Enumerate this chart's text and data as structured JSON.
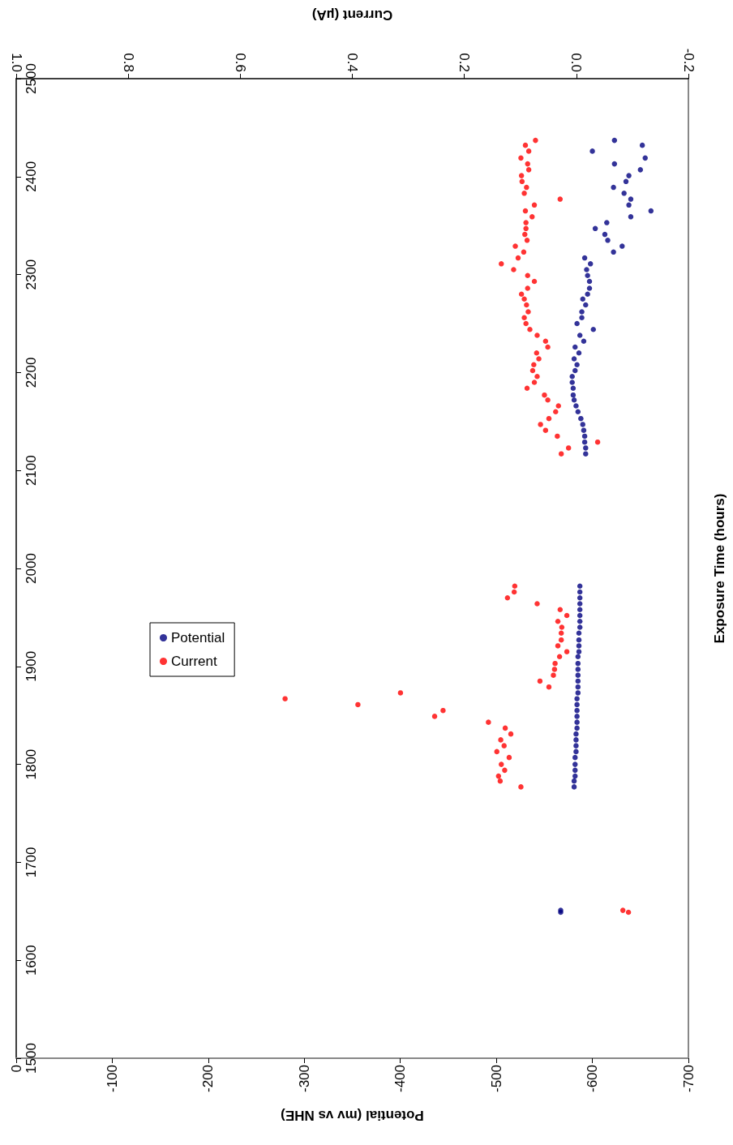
{
  "chart_data": {
    "type": "scatter",
    "xlabel": "Potential (mv vs NHE)",
    "x2label": "Current (µA)",
    "ylabel": "Exposure Time (hours)",
    "xlim": [
      0,
      -700
    ],
    "xticks": [
      0,
      -100,
      -200,
      -300,
      -400,
      -500,
      -600,
      -700
    ],
    "x2lim": [
      1,
      -0.2
    ],
    "x2ticks": [
      {
        "value": 1,
        "label": "1.0"
      },
      0.8,
      0.6,
      0.4,
      0.2,
      {
        "value": 0,
        "label": "0.0"
      },
      -0.2
    ],
    "ylim": [
      1500,
      2500
    ],
    "yticks": [
      1500,
      1600,
      1700,
      1800,
      1900,
      2000,
      2100,
      2200,
      2300,
      2400,
      2500
    ],
    "marker": "circle",
    "legend": "left",
    "series": [
      {
        "name": "Potential",
        "color": "#000080",
        "x": [
          -567,
          -567,
          -581,
          -581,
          -582,
          -582,
          -582,
          -582,
          -583,
          -583,
          -583,
          -583,
          -584,
          -584,
          -584,
          -584,
          -584,
          -584,
          -585,
          -585,
          -585,
          -585,
          -585,
          -585,
          -585,
          -586,
          -586,
          -586,
          -586,
          -587,
          -587,
          -587,
          -587,
          -587,
          -587,
          -587,
          -587,
          -593,
          -593,
          -592,
          -592,
          -591,
          -590,
          -588,
          -585,
          -583,
          -581,
          -580,
          -580,
          -579,
          -579,
          -582,
          -584,
          -581,
          -586,
          -582,
          -591,
          -587,
          -601,
          -584,
          -589,
          -589,
          -593,
          -590,
          -595,
          -597,
          -597,
          -595,
          -594,
          -598,
          -592,
          -622,
          -631,
          -616,
          -613,
          -603,
          -615,
          -640,
          -661,
          -638,
          -640,
          -633,
          -622,
          -635,
          -638,
          -650,
          -623,
          -655,
          -600,
          -652,
          -623
        ],
        "values": [
          1649,
          1651,
          1777,
          1783,
          1788,
          1794,
          1800,
          1807,
          1813,
          1819,
          1825,
          1831,
          1837,
          1843,
          1849,
          1855,
          1861,
          1867,
          1873,
          1879,
          1885,
          1891,
          1897,
          1903,
          1910,
          1915,
          1921,
          1927,
          1934,
          1940,
          1946,
          1952,
          1958,
          1964,
          1970,
          1976,
          1982,
          2117,
          2123,
          2129,
          2135,
          2141,
          2147,
          2153,
          2160,
          2166,
          2172,
          2177,
          2184,
          2190,
          2196,
          2202,
          2208,
          2214,
          2220,
          2226,
          2232,
          2238,
          2244,
          2250,
          2256,
          2262,
          2269,
          2275,
          2280,
          2286,
          2293,
          2299,
          2305,
          2311,
          2317,
          2323,
          2329,
          2335,
          2341,
          2347,
          2353,
          2359,
          2365,
          2371,
          2377,
          2383,
          2389,
          2395,
          2401,
          2407,
          2413,
          2419,
          2426,
          2432,
          2437
        ]
      },
      {
        "name": "Current",
        "color": "#ff0000",
        "axis": "x2",
        "x": [
          -0.093,
          -0.083,
          0.099,
          0.136,
          0.139,
          0.128,
          0.134,
          0.12,
          0.142,
          0.129,
          0.135,
          0.117,
          0.127,
          0.157,
          0.253,
          0.238,
          0.39,
          0.52,
          0.314,
          0.049,
          0.065,
          0.041,
          0.039,
          0.038,
          0.03,
          0.017,
          0.033,
          0.027,
          0.027,
          0.026,
          0.033,
          0.017,
          0.029,
          0.07,
          0.123,
          0.111,
          0.11,
          0.027,
          0.014,
          -0.038,
          0.034,
          0.055,
          0.064,
          0.049,
          0.037,
          0.032,
          0.051,
          0.057,
          0.088,
          0.075,
          0.07,
          0.078,
          0.076,
          0.067,
          0.071,
          0.051,
          0.055,
          0.07,
          0.083,
          0.09,
          0.093,
          0.086,
          0.089,
          0.093,
          0.098,
          0.087,
          0.075,
          0.087,
          0.112,
          0.134,
          0.104,
          0.094,
          0.109,
          0.088,
          0.092,
          0.09,
          0.09,
          0.079,
          0.091,
          0.075,
          0.029,
          0.093,
          0.089,
          0.097,
          0.098,
          0.085,
          0.087,
          0.099,
          0.085,
          0.091,
          0.073
        ],
        "values": [
          1649,
          1651,
          1777,
          1783,
          1788,
          1794,
          1800,
          1807,
          1813,
          1819,
          1825,
          1831,
          1837,
          1843,
          1849,
          1855,
          1861,
          1867,
          1873,
          1879,
          1885,
          1891,
          1897,
          1903,
          1910,
          1915,
          1921,
          1927,
          1934,
          1940,
          1946,
          1952,
          1958,
          1964,
          1970,
          1976,
          1982,
          2117,
          2123,
          2129,
          2135,
          2141,
          2147,
          2153,
          2160,
          2166,
          2172,
          2177,
          2184,
          2190,
          2196,
          2202,
          2208,
          2214,
          2220,
          2226,
          2232,
          2238,
          2244,
          2250,
          2256,
          2262,
          2269,
          2275,
          2280,
          2286,
          2293,
          2299,
          2305,
          2311,
          2317,
          2323,
          2329,
          2335,
          2341,
          2347,
          2353,
          2359,
          2365,
          2371,
          2377,
          2383,
          2389,
          2395,
          2401,
          2407,
          2413,
          2419,
          2426,
          2432,
          2437
        ]
      }
    ]
  }
}
